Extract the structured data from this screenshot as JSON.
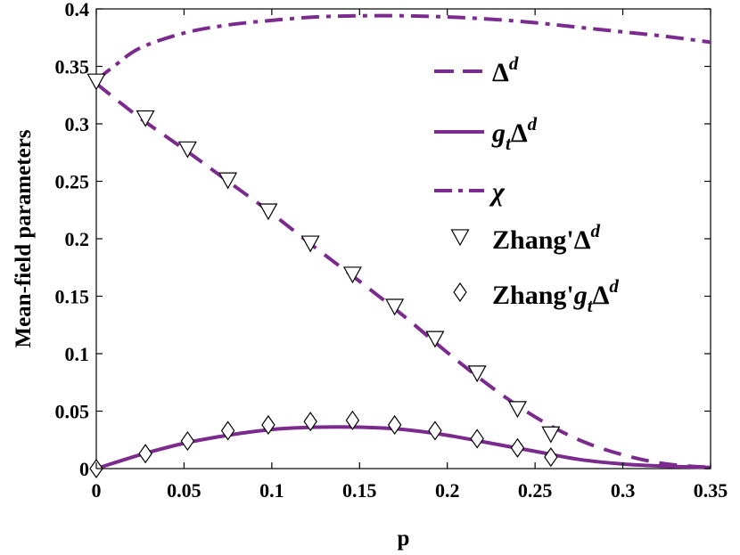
{
  "chart_data": {
    "type": "line",
    "xlabel": "p",
    "ylabel": "Mean-field parameters",
    "xlim": [
      0,
      0.35
    ],
    "ylim": [
      0,
      0.4
    ],
    "xticks": [
      0,
      0.05,
      0.1,
      0.15,
      0.2,
      0.25,
      0.3,
      0.35
    ],
    "xtick_labels": [
      "0",
      "0.05",
      "0.1",
      "0.15",
      "0.2",
      "0.25",
      "0.3",
      "0.35"
    ],
    "yticks": [
      0,
      0.05,
      0.1,
      0.15,
      0.2,
      0.25,
      0.3,
      0.35,
      0.4
    ],
    "ytick_labels": [
      "0",
      "0.05",
      "0.1",
      "0.15",
      "0.2",
      "0.25",
      "0.3",
      "0.35",
      "0.4"
    ],
    "grid": false,
    "legend_position": "upper-right",
    "colors": {
      "curve": "#7b2a8e",
      "marker": "#000000"
    },
    "series": [
      {
        "name": "Δ^d",
        "legend_main": "Δ",
        "legend_sub": "",
        "legend_prefix": "",
        "legend_sup": "d",
        "kind": "line",
        "style": "dashed",
        "x": [
          0,
          0.025,
          0.05,
          0.075,
          0.1,
          0.125,
          0.15,
          0.175,
          0.2,
          0.225,
          0.25,
          0.275,
          0.3,
          0.325,
          0.35
        ],
        "y": [
          0.335,
          0.305,
          0.278,
          0.25,
          0.222,
          0.192,
          0.163,
          0.133,
          0.101,
          0.071,
          0.045,
          0.025,
          0.012,
          0.004,
          0.001
        ]
      },
      {
        "name": "g_tΔ^d",
        "legend_main": "g",
        "legend_sub": "t",
        "legend_prefix": "",
        "legend_sup": "d",
        "legend_after_sub": "Δ",
        "kind": "line",
        "style": "solid",
        "x": [
          0,
          0.025,
          0.05,
          0.075,
          0.1,
          0.125,
          0.15,
          0.175,
          0.2,
          0.225,
          0.25,
          0.275,
          0.3,
          0.325,
          0.35
        ],
        "y": [
          0,
          0.012,
          0.022,
          0.029,
          0.034,
          0.036,
          0.036,
          0.034,
          0.029,
          0.022,
          0.015,
          0.008,
          0.004,
          0.002,
          0.001
        ]
      },
      {
        "name": "χ",
        "legend_main": "χ",
        "legend_sub": "",
        "legend_prefix": "",
        "legend_sup": "",
        "kind": "line",
        "style": "dashdot",
        "x": [
          0,
          0.01,
          0.025,
          0.05,
          0.075,
          0.1,
          0.125,
          0.15,
          0.175,
          0.2,
          0.225,
          0.25,
          0.275,
          0.3,
          0.325,
          0.35
        ],
        "y": [
          0.338,
          0.35,
          0.366,
          0.379,
          0.386,
          0.39,
          0.393,
          0.394,
          0.394,
          0.393,
          0.391,
          0.388,
          0.384,
          0.38,
          0.376,
          0.371
        ]
      },
      {
        "name": "Zhang'Δ^d",
        "legend_main": "Δ",
        "legend_sub": "",
        "legend_prefix": "Zhang'",
        "legend_sup": "d",
        "kind": "marker",
        "marker": "triangle-down",
        "x": [
          0,
          0.028,
          0.052,
          0.075,
          0.098,
          0.122,
          0.146,
          0.17,
          0.193,
          0.217,
          0.24,
          0.259
        ],
        "y": [
          0.337,
          0.305,
          0.278,
          0.251,
          0.224,
          0.196,
          0.169,
          0.141,
          0.113,
          0.083,
          0.052,
          0.03
        ]
      },
      {
        "name": "Zhang'g_tΔ^d",
        "legend_main": "g",
        "legend_sub": "t",
        "legend_prefix": "Zhang'",
        "legend_sup": "d",
        "legend_after_sub": "Δ",
        "kind": "marker",
        "marker": "diamond",
        "x": [
          0,
          0.028,
          0.052,
          0.075,
          0.098,
          0.122,
          0.146,
          0.17,
          0.193,
          0.217,
          0.24,
          0.259
        ],
        "y": [
          0,
          0.013,
          0.024,
          0.033,
          0.038,
          0.041,
          0.042,
          0.038,
          0.033,
          0.026,
          0.018,
          0.01
        ]
      }
    ]
  }
}
